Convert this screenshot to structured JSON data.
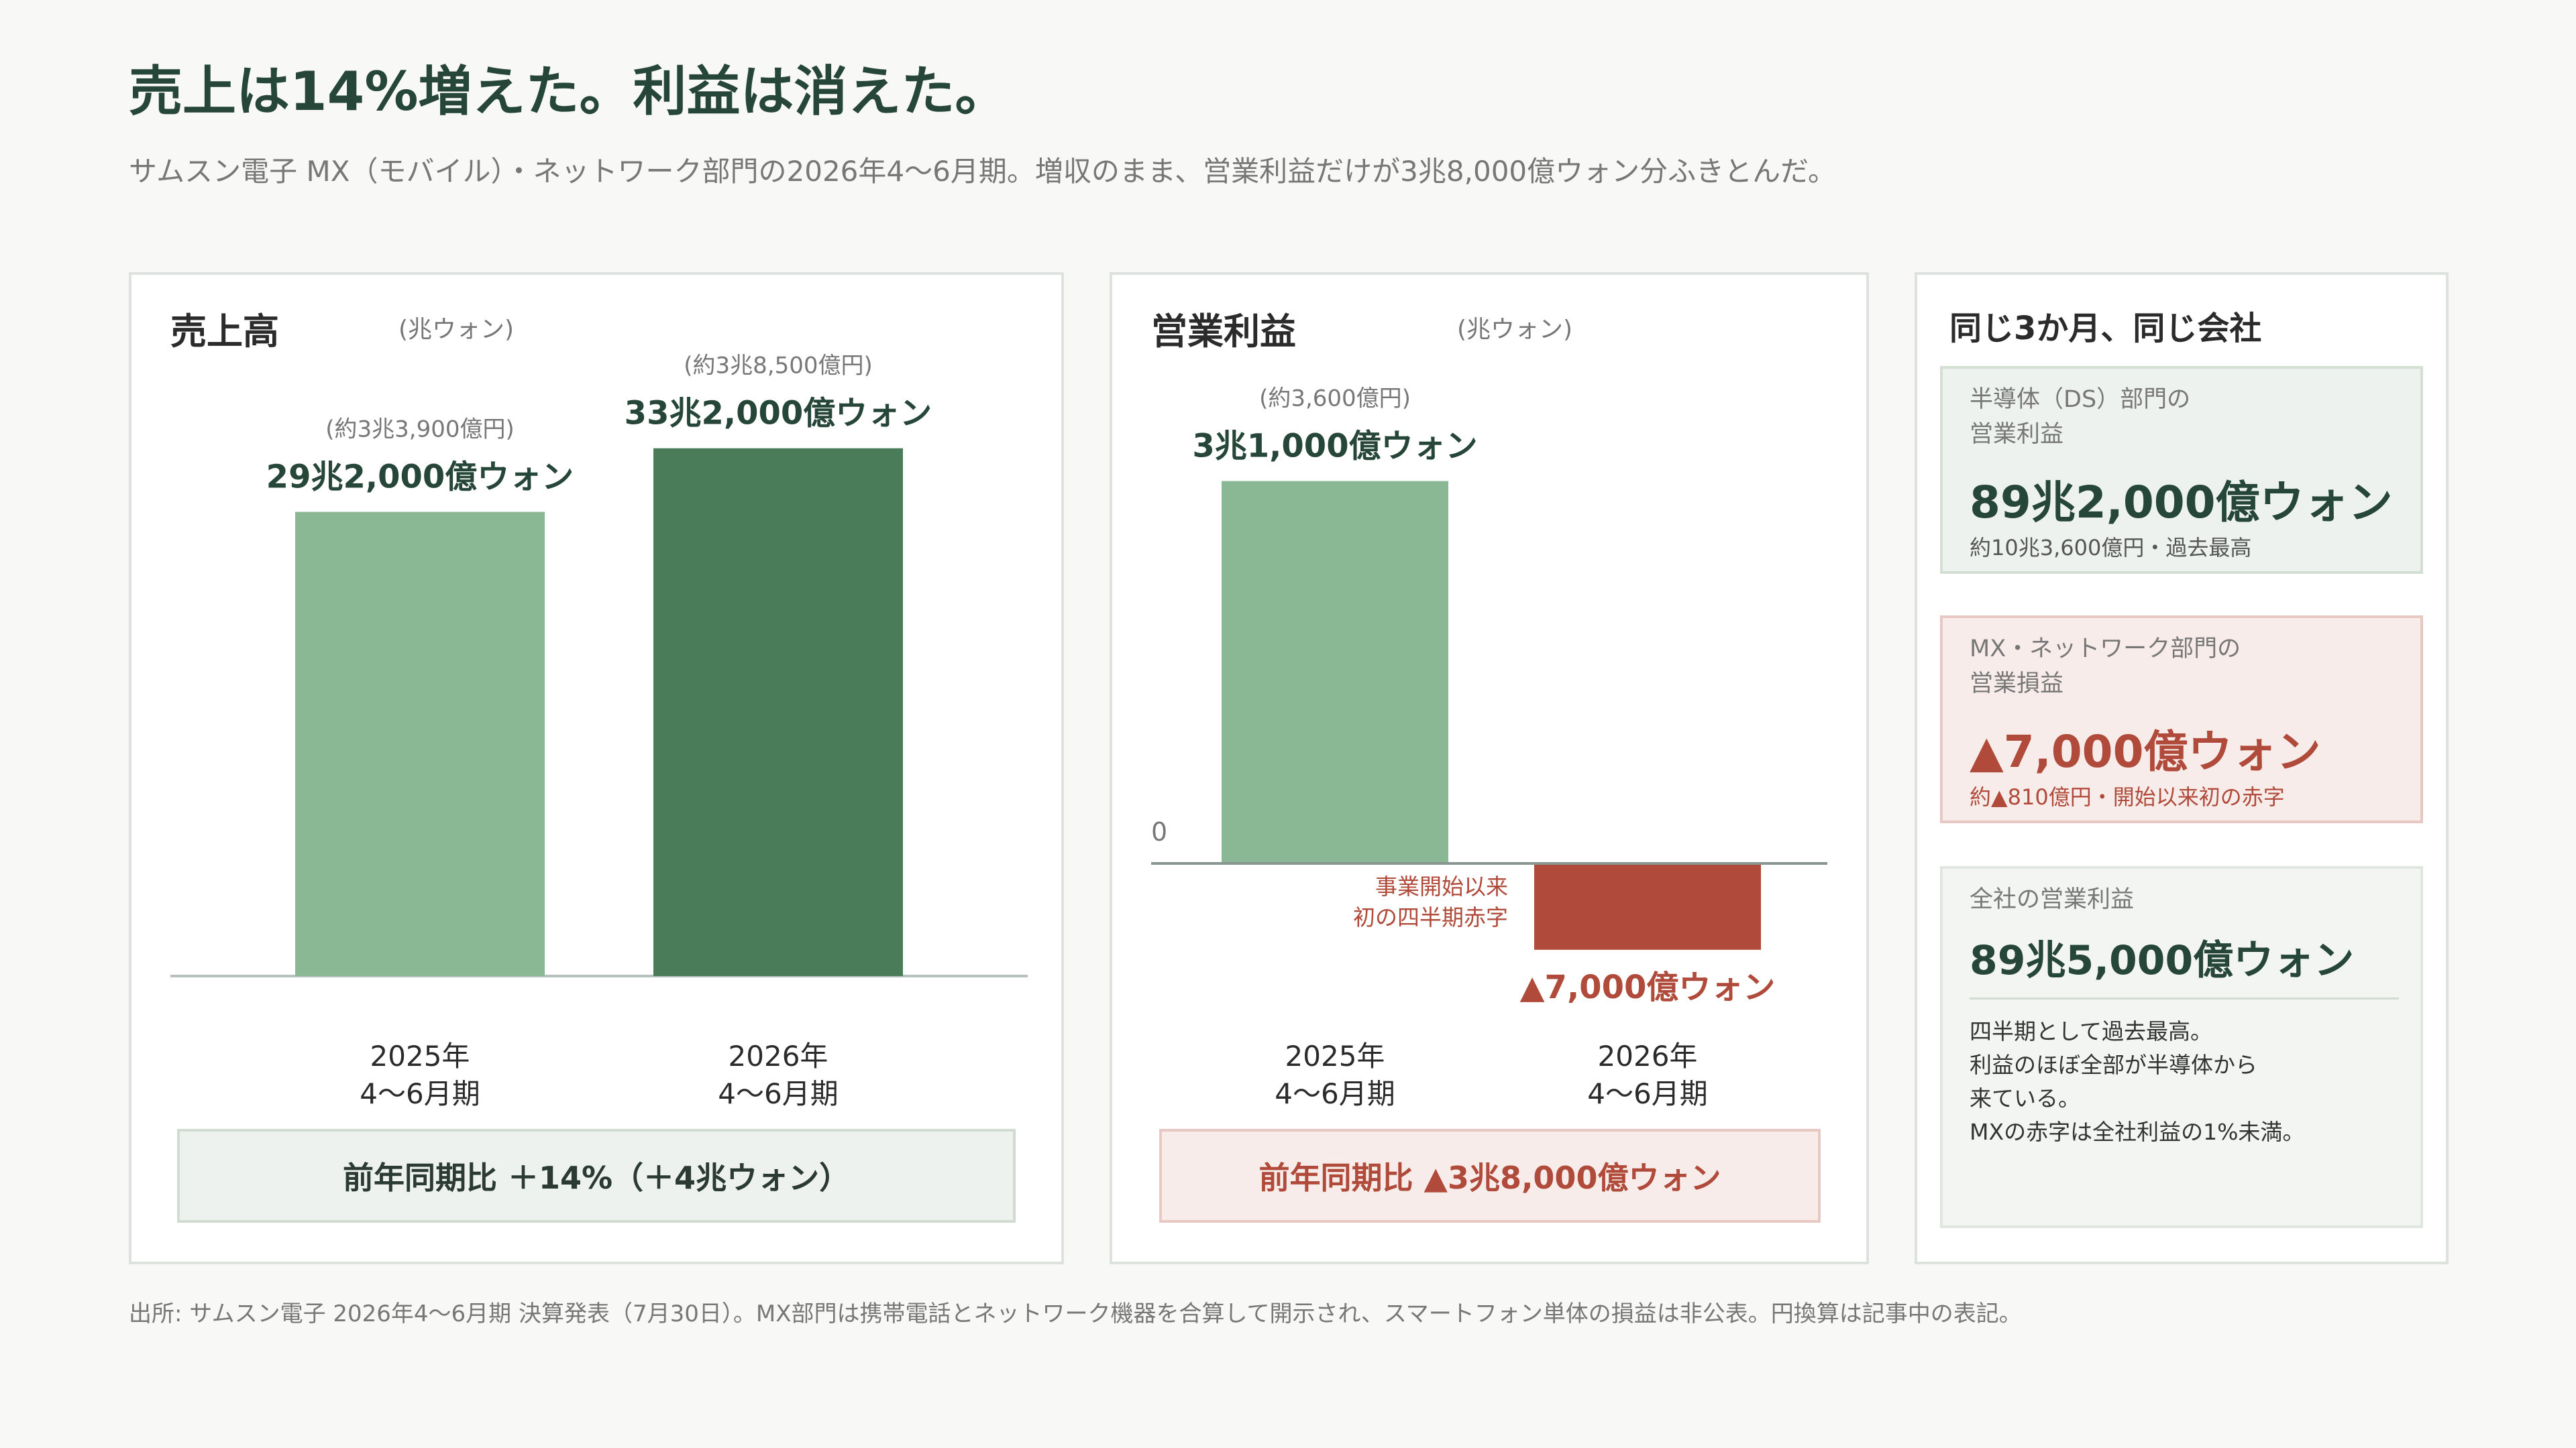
{
  "title": "売上は14%増えた。利益は消えた。",
  "subtitle": "サムスン電子 MX（モバイル）・ネットワーク部門の2026年4〜6月期。増収のまま、営業利益だけが3兆8,000億ウォン分ふきとんだ。",
  "colors": {
    "green_light": "#8bb894",
    "green_dark": "#4a7c59",
    "red": "#b04a3a",
    "title": "#27463a"
  },
  "chart_data": [
    {
      "type": "bar",
      "title": "売上高",
      "unit": "(兆ウォン)",
      "categories": [
        [
          "2025年",
          "4〜6月期"
        ],
        [
          "2026年",
          "4〜6月期"
        ]
      ],
      "values": [
        29.2,
        33.2
      ],
      "value_labels": [
        "29兆2,000億ウォン",
        "33兆2,000億ウォン"
      ],
      "yen_labels": [
        "(約3兆3,900億円)",
        "(約3兆8,500億円)"
      ],
      "bar_colors": [
        "#8bb894",
        "#4a7c59"
      ],
      "ylim": [
        0,
        35
      ],
      "summary": "前年同期比 ＋14%（＋4兆ウォン）"
    },
    {
      "type": "bar",
      "title": "営業利益",
      "unit": "(兆ウォン)",
      "categories": [
        [
          "2025年",
          "4〜6月期"
        ],
        [
          "2026年",
          "4〜6月期"
        ]
      ],
      "values": [
        3.1,
        -0.7
      ],
      "value_labels": [
        "3兆1,000億ウォン",
        "▲7,000億ウォン"
      ],
      "yen_labels": [
        "(約3,600億円)",
        ""
      ],
      "zero_label": "0",
      "annotation": [
        "事業開始以来",
        "初の四半期赤字"
      ],
      "bar_colors": [
        "#8bb894",
        "#b04a3a"
      ],
      "ylim": [
        -1.0,
        3.5
      ],
      "summary": "前年同期比 ▲3兆8,000億ウォン"
    }
  ],
  "side": {
    "title": "同じ3か月、同じ会社",
    "cards": [
      {
        "label": [
          "半導体（DS）部門の",
          "営業利益"
        ],
        "value": "89兆2,000億ウォン",
        "sub": "約10兆3,600億円・過去最高"
      },
      {
        "label": [
          "MX・ネットワーク部門の",
          "営業損益"
        ],
        "value": "▲7,000億ウォン",
        "sub": "約▲810億円・開始以来初の赤字"
      },
      {
        "label": [
          "全社の営業利益"
        ],
        "value": "89兆5,000億ウォン",
        "note": [
          "四半期として過去最高。",
          "利益のほぼ全部が半導体から",
          "来ている。",
          "MXの赤字は全社利益の1%未満。"
        ]
      }
    ]
  },
  "source": "出所: サムスン電子 2026年4〜6月期 決算発表（7月30日）。MX部門は携帯電話とネットワーク機器を合算して開示され、スマートフォン単体の損益は非公表。円換算は記事中の表記。"
}
